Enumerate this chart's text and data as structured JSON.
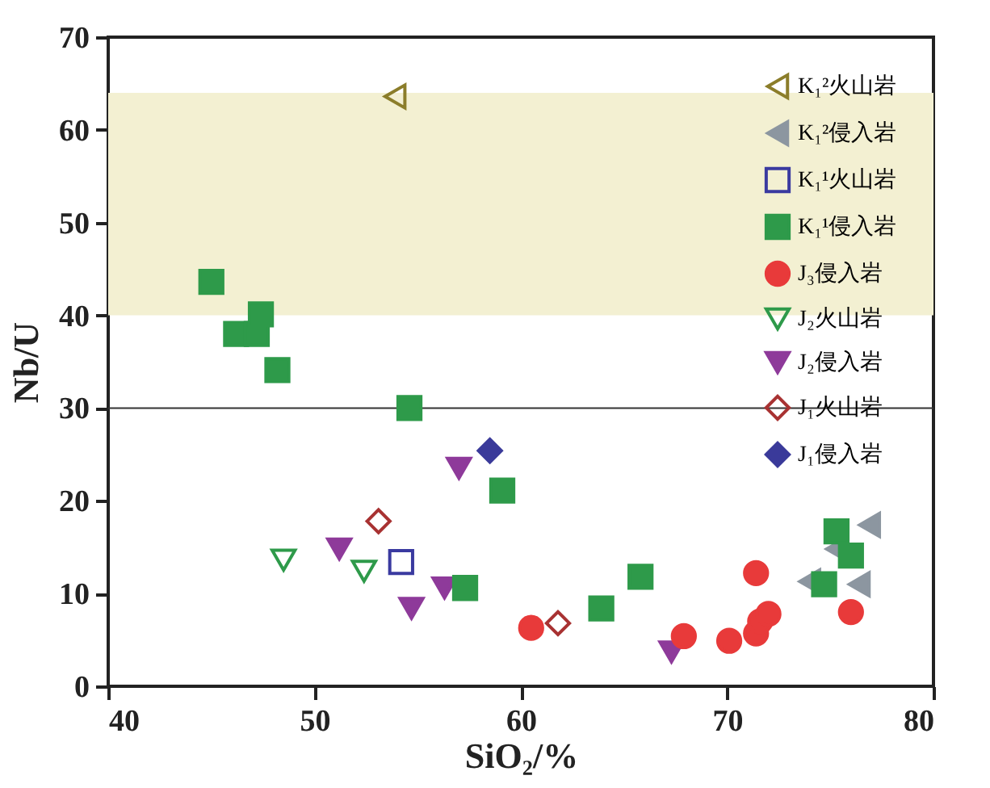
{
  "chart_data": {
    "type": "scatter",
    "xlabel": "SiO₂/%",
    "ylabel": "Nb/U",
    "xlim": [
      40,
      80
    ],
    "ylim": [
      0,
      70
    ],
    "xticks": [
      40,
      50,
      60,
      70,
      80
    ],
    "yticks": [
      0,
      10,
      20,
      30,
      40,
      50,
      60,
      70
    ],
    "grid": false,
    "legend": "top right",
    "bands": [
      {
        "axis": "y",
        "from": 40,
        "to": 64,
        "color": "#f3f0d2"
      }
    ],
    "ref_lines": [
      {
        "axis": "y",
        "value": 30,
        "color": "#333333"
      }
    ],
    "series": [
      {
        "name": "K₁²火山岩",
        "color": "#8b7d2a",
        "marker": "triangle-left-open",
        "x": [
          53.9
        ],
        "values": [
          63.6
        ]
      },
      {
        "name": "K₁²侵入岩",
        "color": "#8c96a0",
        "marker": "triangle-left",
        "x": [
          76.9,
          75.3,
          74.0,
          76.4
        ],
        "values": [
          17.4,
          14.8,
          11.3,
          11.0
        ]
      },
      {
        "name": "K₁¹火山岩",
        "color": "#3a3aa0",
        "marker": "square-open",
        "x": [
          54.2
        ],
        "values": [
          13.4
        ]
      },
      {
        "name": "K₁¹侵入岩",
        "color": "#2e9a4a",
        "marker": "square",
        "x": [
          45.0,
          46.2,
          47.2,
          47.4,
          48.2,
          54.6,
          59.1,
          57.3,
          65.8,
          63.9,
          75.3,
          76.0,
          74.7
        ],
        "values": [
          43.6,
          38.0,
          38.0,
          40.1,
          34.1,
          30.0,
          21.1,
          10.6,
          11.8,
          8.4,
          16.7,
          14.1,
          11.0
        ]
      },
      {
        "name": "J₃侵入岩",
        "color": "#e83a3a",
        "marker": "circle",
        "x": [
          60.5,
          67.9,
          70.1,
          71.4,
          71.6,
          72.0,
          71.4,
          76.0
        ],
        "values": [
          6.3,
          5.4,
          4.9,
          5.7,
          7.0,
          7.8,
          12.2,
          8.0
        ]
      },
      {
        "name": "J₂火山岩",
        "color": "#2e9a4a",
        "marker": "triangle-down-open",
        "x": [
          48.5,
          52.4
        ],
        "values": [
          13.6,
          12.4
        ]
      },
      {
        "name": "J₂侵入岩",
        "color": "#8e3a9a",
        "marker": "triangle-down",
        "x": [
          51.2,
          57.0,
          54.7,
          56.3,
          67.3
        ],
        "values": [
          14.8,
          23.5,
          8.4,
          10.6,
          3.7
        ]
      },
      {
        "name": "J₁火山岩",
        "color": "#a83232",
        "marker": "diamond-open",
        "x": [
          53.1,
          61.8
        ],
        "values": [
          17.8,
          6.8
        ]
      },
      {
        "name": "J₁侵入岩",
        "color": "#3a3a9a",
        "marker": "diamond",
        "x": [
          58.5
        ],
        "values": [
          25.4
        ]
      }
    ]
  }
}
